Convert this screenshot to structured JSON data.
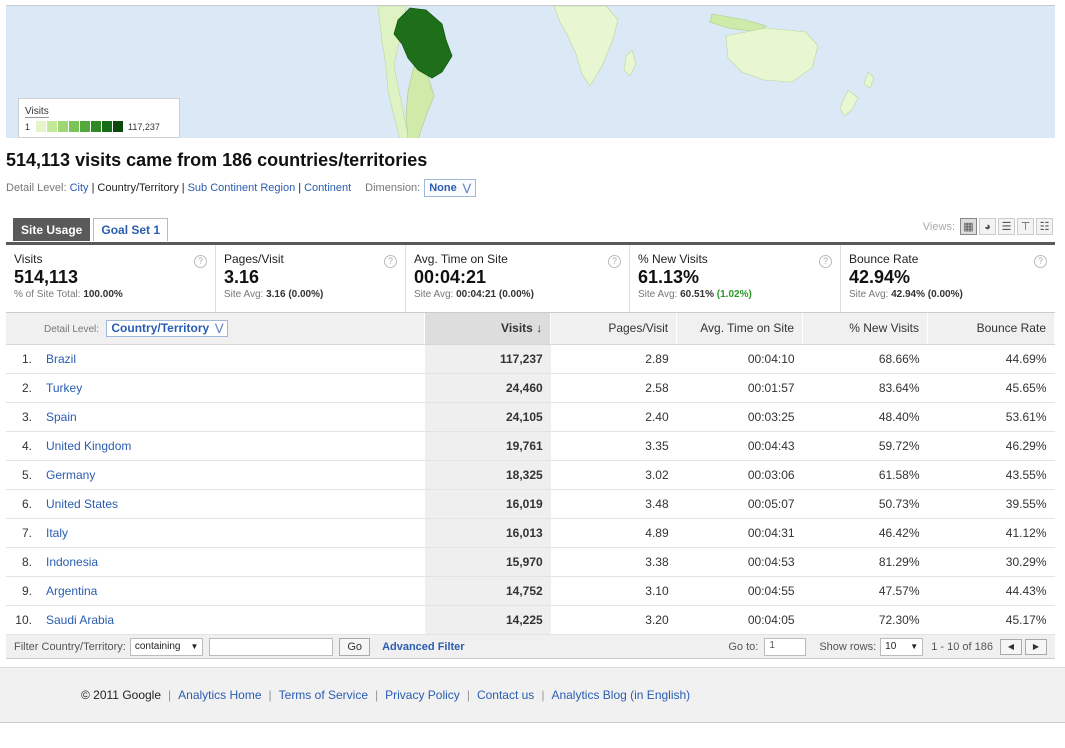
{
  "map": {
    "legend_title": "Visits",
    "legend_min": "1",
    "legend_max": "117,237",
    "legend_colors": [
      "#e5f5c8",
      "#c3e89a",
      "#9fd775",
      "#78c455",
      "#52a83b",
      "#2f8a26",
      "#186b17",
      "#0b4a0b"
    ]
  },
  "heading": "514,113 visits came from 186 countries/territories",
  "detail": {
    "label": "Detail Level:",
    "city": "City",
    "country": "Country/Territory",
    "subcontinent": "Sub Continent Region",
    "continent": "Continent",
    "dimension_label": "Dimension:",
    "dimension_value": "None"
  },
  "tabs": {
    "site_usage": "Site Usage",
    "goal_set": "Goal Set 1"
  },
  "views_label": "Views:",
  "scorecard": {
    "visits": {
      "label": "Visits",
      "value": "514,113",
      "sub_prefix": "% of Site Total:",
      "sub_value": "100.00%"
    },
    "pages": {
      "label": "Pages/Visit",
      "value": "3.16",
      "sub_prefix": "Site Avg:",
      "sub_value": "3.16 (0.00%)"
    },
    "time": {
      "label": "Avg. Time on Site",
      "value": "00:04:21",
      "sub_prefix": "Site Avg:",
      "sub_value": "00:04:21 (0.00%)"
    },
    "newvisits": {
      "label": "% New Visits",
      "value": "61.13%",
      "sub_prefix": "Site Avg:",
      "sub_value": "60.51%",
      "sub_delta": "(1.02%)"
    },
    "bounce": {
      "label": "Bounce Rate",
      "value": "42.94%",
      "sub_prefix": "Site Avg:",
      "sub_value": "42.94% (0.00%)"
    }
  },
  "table": {
    "detail_label": "Detail Level:",
    "detail_value": "Country/Territory",
    "headers": {
      "visits": "Visits",
      "pages": "Pages/Visit",
      "time": "Avg. Time on Site",
      "newvisits": "% New Visits",
      "bounce": "Bounce Rate"
    },
    "rows": [
      {
        "idx": "1.",
        "country": "Brazil",
        "visits": "117,237",
        "pages": "2.89",
        "time": "00:04:10",
        "newvisits": "68.66%",
        "bounce": "44.69%"
      },
      {
        "idx": "2.",
        "country": "Turkey",
        "visits": "24,460",
        "pages": "2.58",
        "time": "00:01:57",
        "newvisits": "83.64%",
        "bounce": "45.65%"
      },
      {
        "idx": "3.",
        "country": "Spain",
        "visits": "24,105",
        "pages": "2.40",
        "time": "00:03:25",
        "newvisits": "48.40%",
        "bounce": "53.61%"
      },
      {
        "idx": "4.",
        "country": "United Kingdom",
        "visits": "19,761",
        "pages": "3.35",
        "time": "00:04:43",
        "newvisits": "59.72%",
        "bounce": "46.29%"
      },
      {
        "idx": "5.",
        "country": "Germany",
        "visits": "18,325",
        "pages": "3.02",
        "time": "00:03:06",
        "newvisits": "61.58%",
        "bounce": "43.55%"
      },
      {
        "idx": "6.",
        "country": "United States",
        "visits": "16,019",
        "pages": "3.48",
        "time": "00:05:07",
        "newvisits": "50.73%",
        "bounce": "39.55%"
      },
      {
        "idx": "7.",
        "country": "Italy",
        "visits": "16,013",
        "pages": "4.89",
        "time": "00:04:31",
        "newvisits": "46.42%",
        "bounce": "41.12%"
      },
      {
        "idx": "8.",
        "country": "Indonesia",
        "visits": "15,970",
        "pages": "3.38",
        "time": "00:04:53",
        "newvisits": "81.29%",
        "bounce": "30.29%"
      },
      {
        "idx": "9.",
        "country": "Argentina",
        "visits": "14,752",
        "pages": "3.10",
        "time": "00:04:55",
        "newvisits": "47.57%",
        "bounce": "44.43%"
      },
      {
        "idx": "10.",
        "country": "Saudi Arabia",
        "visits": "14,225",
        "pages": "3.20",
        "time": "00:04:05",
        "newvisits": "72.30%",
        "bounce": "45.17%"
      }
    ]
  },
  "filterbar": {
    "filter_label": "Filter Country/Territory:",
    "filter_mode": "containing",
    "go": "Go",
    "advanced": "Advanced Filter",
    "goto_label": "Go to:",
    "goto_value": "1",
    "showrows_label": "Show rows:",
    "showrows_value": "10",
    "range": "1 - 10 of 186"
  },
  "footer": {
    "copyright": "© 2011 Google",
    "links": [
      "Analytics Home",
      "Terms of Service",
      "Privacy Policy",
      "Contact us",
      "Analytics Blog (in English)"
    ]
  }
}
